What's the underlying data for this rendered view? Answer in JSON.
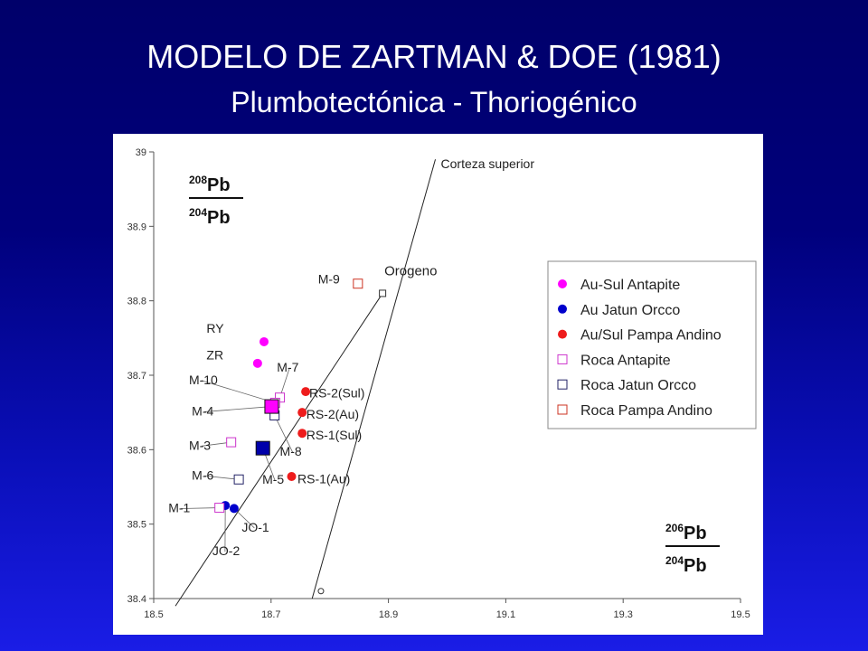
{
  "slide": {
    "title": "MODELO DE ZARTMAN & DOE (1981)",
    "subtitle": "Plumbotectónica - Thoriogénico"
  },
  "chart_data": {
    "type": "scatter",
    "xlim": [
      18.5,
      19.5
    ],
    "ylim": [
      38.4,
      39.0
    ],
    "x_ticks": [
      "18.5",
      "18.7",
      "18.9",
      "19.1",
      "19.3",
      "19.5"
    ],
    "y_ticks": [
      "38.4",
      "38.5",
      "38.6",
      "38.7",
      "38.8",
      "38.9",
      "39"
    ],
    "y_axis_label": {
      "num_sup": "208",
      "num": "Pb",
      "den_sup": "204",
      "den": "Pb"
    },
    "x_axis_label": {
      "num_sup": "206",
      "num": "Pb",
      "den_sup": "204",
      "den": "Pb"
    },
    "grid": false,
    "curves": [
      {
        "label": "Orogeno",
        "points": [
          [
            18.537,
            38.39
          ],
          [
            18.89,
            38.81
          ]
        ],
        "end_marker": "square"
      },
      {
        "label": "Corteza superior",
        "points": [
          [
            18.77,
            38.4
          ],
          [
            18.98,
            38.99
          ]
        ],
        "start_marker": "circle",
        "start_point": [
          18.785,
          38.41
        ]
      }
    ],
    "legend_position": "right-middle",
    "legend": [
      {
        "label": "Au-Sul Antapite",
        "marker": "circle",
        "color": "#ff00ff"
      },
      {
        "label": "Au Jatun Orcco",
        "marker": "circle",
        "color": "#0000cc"
      },
      {
        "label": "Au/Sul Pampa Andino",
        "marker": "circle",
        "color": "#ee1c1c"
      },
      {
        "label": "Roca Antapite",
        "marker": "square-open",
        "color": "#cc33cc"
      },
      {
        "label": "Roca Jatun Orcco",
        "marker": "square-open",
        "color": "#222266"
      },
      {
        "label": "Roca Pampa Andino",
        "marker": "square-open",
        "color": "#cc3322"
      }
    ],
    "series": [
      {
        "group": "Au-Sul Antapite",
        "marker": "circle",
        "color": "#ff00ff",
        "points": [
          {
            "x": 18.688,
            "y": 38.745,
            "label": "RY"
          },
          {
            "x": 18.677,
            "y": 38.716,
            "label": "ZR"
          }
        ]
      },
      {
        "group": "Au Jatun Orcco",
        "marker": "circle",
        "color": "#0000cc",
        "points": [
          {
            "x": 18.622,
            "y": 38.525,
            "label": "JO-2"
          },
          {
            "x": 18.637,
            "y": 38.521,
            "label": "JO-1"
          }
        ]
      },
      {
        "group": "Au/Sul Pampa Andino",
        "marker": "circle",
        "color": "#ee1c1c",
        "points": [
          {
            "x": 18.759,
            "y": 38.678,
            "label": "RS-2(Sul)"
          },
          {
            "x": 18.753,
            "y": 38.65,
            "label": "RS-2(Au)"
          },
          {
            "x": 18.753,
            "y": 38.622,
            "label": "RS-1(Sul)"
          },
          {
            "x": 18.735,
            "y": 38.564,
            "label": "RS-1(Au)"
          }
        ]
      },
      {
        "group": "Roca Antapite",
        "marker": "square-open",
        "color": "#cc33cc",
        "points": [
          {
            "x": 18.715,
            "y": 38.67,
            "label": "M-7"
          },
          {
            "x": 18.707,
            "y": 38.663,
            "label": "M-10"
          },
          {
            "x": 18.632,
            "y": 38.61,
            "label": "M-3"
          },
          {
            "x": 18.612,
            "y": 38.522,
            "label": "M-1"
          }
        ]
      },
      {
        "group": "Roca Jatun Orcco",
        "marker": "square-open",
        "color": "#222266",
        "points": [
          {
            "x": 18.706,
            "y": 38.646,
            "label": "M-8"
          },
          {
            "x": 18.645,
            "y": 38.56,
            "label": "M-6"
          }
        ]
      },
      {
        "group": "Roca Pampa Andino",
        "marker": "square-open",
        "color": "#cc3322",
        "points": [
          {
            "x": 18.848,
            "y": 38.823,
            "label": "M-9"
          }
        ]
      }
    ],
    "highlighted": [
      {
        "label": "M-4",
        "x": 18.701,
        "y": 38.658,
        "color": "#ff00ff",
        "marker": "square-filled"
      },
      {
        "label": "M-5",
        "x": 18.686,
        "y": 38.602,
        "color": "#0000aa",
        "marker": "square-filled"
      }
    ]
  }
}
